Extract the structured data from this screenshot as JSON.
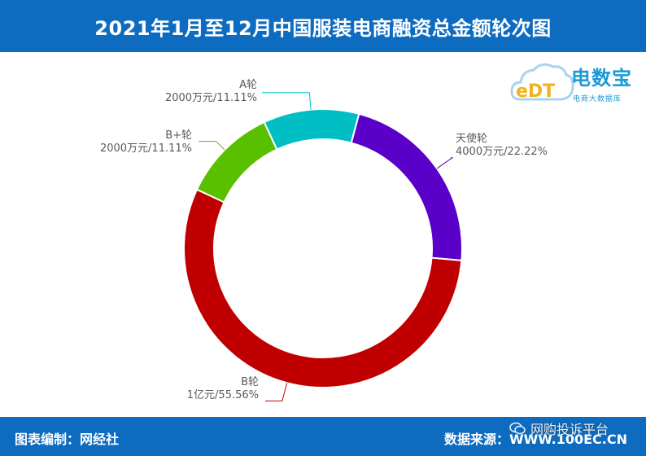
{
  "header": {
    "title": "2021年1月至12月中国服装电商融资总金额轮次图"
  },
  "footer": {
    "left": "图表编制：网经社",
    "right": "数据来源：WWW.100EC.CN"
  },
  "watermark": {
    "text": "网购投诉平台",
    "icon": "wechat-icon"
  },
  "logo": {
    "brand": "电数宝",
    "sub": "电商大数据库",
    "mark": "eDT"
  },
  "chart_data": {
    "type": "pie",
    "variant": "donut",
    "title": "2021年1月至12月中国服装电商融资总金额轮次图",
    "start_angle_deg": 15,
    "direction": "clockwise",
    "slices": [
      {
        "name": "天使轮",
        "amount": "4000万元",
        "value": 22.22,
        "percent": "22.22%",
        "color": "#5a00c8"
      },
      {
        "name": "B轮",
        "amount": "1亿元",
        "value": 55.56,
        "percent": "55.56%",
        "color": "#c00000"
      },
      {
        "name": "B+轮",
        "amount": "2000万元",
        "value": 11.11,
        "percent": "11.11%",
        "color": "#59c000"
      },
      {
        "name": "A轮",
        "amount": "2000万元",
        "value": 11.11,
        "percent": "11.11%",
        "color": "#00bfc4"
      }
    ]
  }
}
